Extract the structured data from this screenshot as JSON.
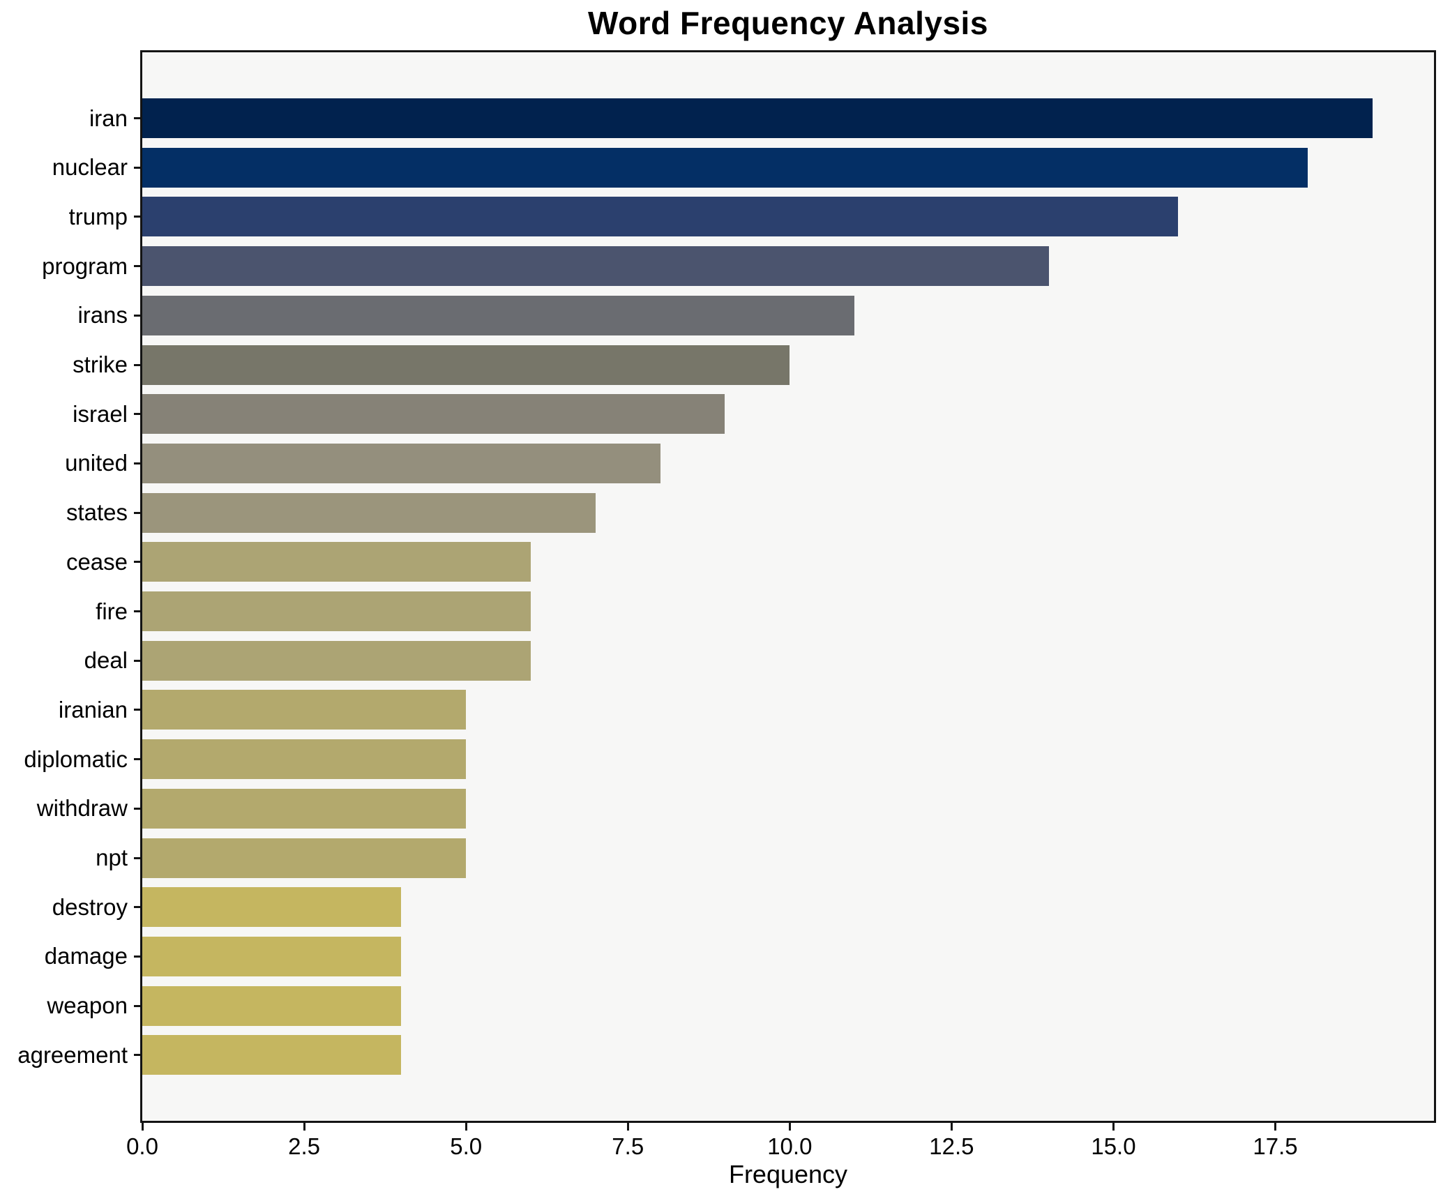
{
  "title": "Word Frequency Analysis",
  "chart_data": {
    "type": "bar",
    "orientation": "horizontal",
    "title": "Word Frequency Analysis",
    "xlabel": "Frequency",
    "ylabel": "",
    "categories": [
      "iran",
      "nuclear",
      "trump",
      "program",
      "irans",
      "strike",
      "israel",
      "united",
      "states",
      "cease",
      "fire",
      "deal",
      "iranian",
      "diplomatic",
      "withdraw",
      "npt",
      "destroy",
      "damage",
      "weapon",
      "agreement"
    ],
    "values": [
      19,
      18,
      16,
      14,
      11,
      10,
      9,
      8,
      7,
      6,
      6,
      6,
      5,
      5,
      5,
      5,
      4,
      4,
      4,
      4
    ],
    "bar_colors": [
      "#01224e",
      "#042f65",
      "#2b406e",
      "#4b546e",
      "#6a6c71",
      "#777669",
      "#868277",
      "#948f7d",
      "#9b957c",
      "#aca474",
      "#aca474",
      "#aca474",
      "#b3a96d",
      "#b3a96d",
      "#b3a96d",
      "#b3a96d",
      "#c5b660",
      "#c5b660",
      "#c5b660",
      "#c5b660"
    ],
    "xlim": [
      0,
      19.95
    ],
    "xticks": [
      0,
      2.5,
      5,
      7.5,
      10,
      12.5,
      15,
      17.5
    ],
    "xtick_labels": [
      "0.0",
      "2.5",
      "5.0",
      "7.5",
      "10.0",
      "12.5",
      "15.0",
      "17.5"
    ],
    "grid": false,
    "legend": "none",
    "plot_bg": "#f7f7f6",
    "fig_bg": "#ffffff",
    "axis_color": "#141414",
    "text_color": "#000000"
  }
}
